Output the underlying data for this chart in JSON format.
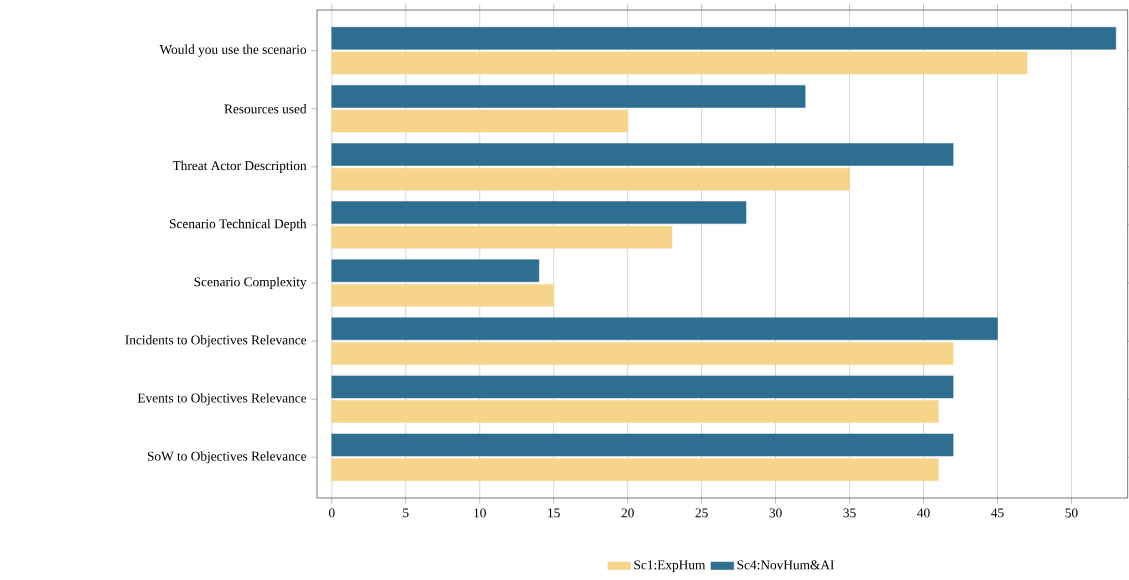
{
  "chart_data": {
    "type": "bar",
    "orientation": "horizontal",
    "categories": [
      "Would you use the scenario",
      "Resources used",
      "Threat Actor Description",
      "Scenario Technical Depth",
      "Scenario Complexity",
      "Incidents to Objectives Relevance",
      "Events to Objectives Relevance",
      "SoW to Objectives Relevance"
    ],
    "series": [
      {
        "name": "Sc1:ExpHum",
        "color": "#f6d58b",
        "values": [
          47,
          20,
          35,
          23,
          15,
          42,
          41,
          41
        ]
      },
      {
        "name": "Sc4:NovHum&AI",
        "color": "#2d6e91",
        "values": [
          53,
          32,
          42,
          28,
          14,
          45,
          42,
          42
        ]
      }
    ],
    "xlim": [
      -1,
      53.8
    ],
    "xticks": [
      0,
      5,
      10,
      15,
      20,
      25,
      30,
      35,
      40,
      45,
      50
    ],
    "grid": "x",
    "legend": "bottom"
  }
}
